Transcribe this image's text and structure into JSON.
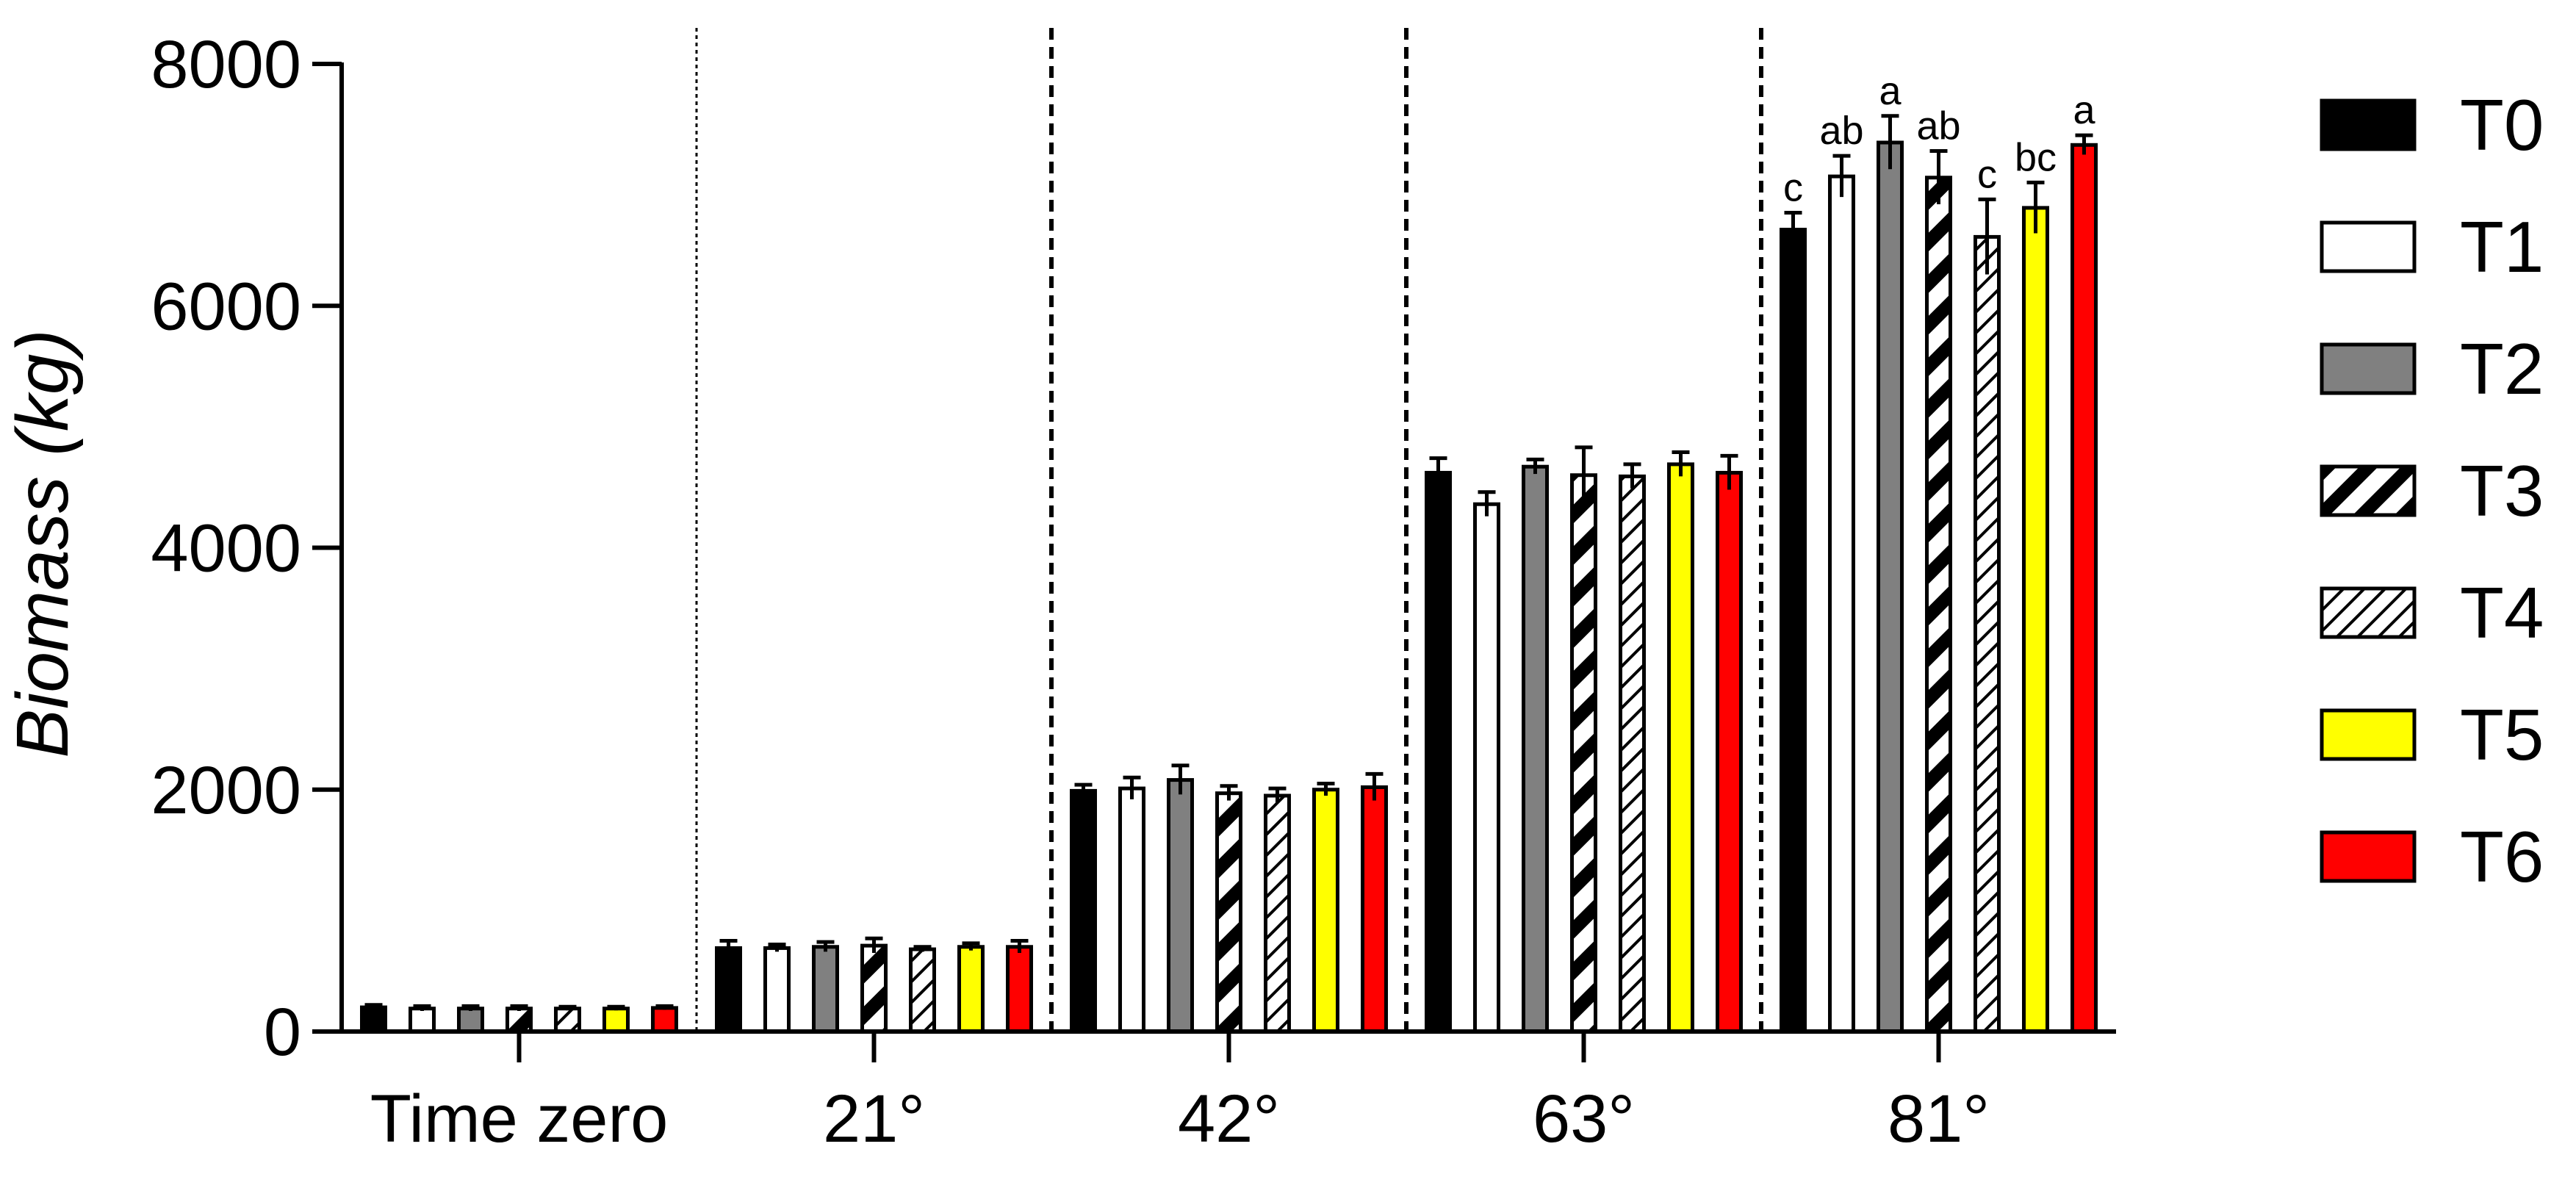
{
  "chart_data": {
    "type": "bar",
    "ylabel": "Biomass (kg)",
    "xlabel": "",
    "ylim": [
      0,
      8000
    ],
    "yticks": [
      0,
      2000,
      4000,
      6000,
      8000
    ],
    "categories": [
      "Time zero",
      "21°",
      "42°",
      "63°",
      "81°"
    ],
    "series": [
      {
        "name": "T0",
        "pattern": "solid",
        "color": "#000000",
        "values": [
          200,
          690,
          1990,
          4620,
          6630
        ],
        "errors": [
          20,
          60,
          50,
          120,
          140
        ]
      },
      {
        "name": "T1",
        "pattern": "solid",
        "color": "#ffffff",
        "values": [
          190,
          690,
          2010,
          4360,
          7070
        ],
        "errors": [
          20,
          30,
          90,
          100,
          170
        ]
      },
      {
        "name": "T2",
        "pattern": "solid",
        "color": "#808080",
        "values": [
          190,
          700,
          2080,
          4670,
          7350
        ],
        "errors": [
          20,
          40,
          120,
          60,
          220
        ]
      },
      {
        "name": "T3",
        "pattern": "bold-diagonal",
        "color": "#000000",
        "values": [
          190,
          710,
          1970,
          4600,
          7060
        ],
        "errors": [
          20,
          60,
          60,
          230,
          220
        ]
      },
      {
        "name": "T4",
        "pattern": "fine-diagonal",
        "color": "#000000",
        "values": [
          190,
          680,
          1950,
          4590,
          6570
        ],
        "errors": [
          15,
          20,
          60,
          100,
          310
        ]
      },
      {
        "name": "T5",
        "pattern": "solid",
        "color": "#ffff00",
        "values": [
          190,
          700,
          2000,
          4690,
          6810
        ],
        "errors": [
          15,
          30,
          50,
          100,
          210
        ]
      },
      {
        "name": "T6",
        "pattern": "solid",
        "color": "#ff0000",
        "values": [
          195,
          700,
          2020,
          4620,
          7330
        ],
        "errors": [
          15,
          50,
          110,
          140,
          80
        ]
      }
    ],
    "significance_letters": {
      "category": "81°",
      "letters": [
        "c",
        "ab",
        "a",
        "ab",
        "c",
        "bc",
        "a"
      ]
    },
    "separators": [
      {
        "after_category": "Time zero",
        "style": "dotted-thin"
      },
      {
        "after_category": "21°",
        "style": "dashed"
      },
      {
        "after_category": "42°",
        "style": "dashed"
      },
      {
        "after_category": "63°",
        "style": "dashed"
      }
    ],
    "legend": {
      "position": "right"
    },
    "grid": false
  }
}
